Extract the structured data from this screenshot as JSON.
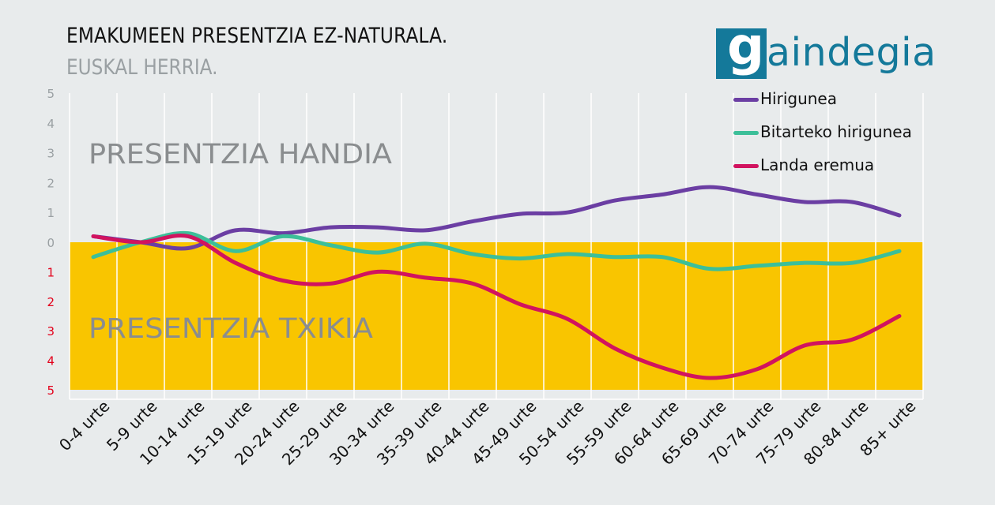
{
  "header": {
    "title": "EMAKUMEEN PRESENTZIA EZ-NATURALA.",
    "subtitle": "EUSKAL HERRIA."
  },
  "logo": {
    "text": "gaindegia",
    "color": "#14799a"
  },
  "chart_data": {
    "type": "line",
    "categories": [
      "0-4 urte",
      "5-9 urte",
      "10-14 urte",
      "15-19 urte",
      "20-24 urte",
      "25-29 urte",
      "30-34 urte",
      "35-39 urte",
      "40-44 urte",
      "45-49 urte",
      "50-54 urte",
      "55-59 urte",
      "60-64 urte",
      "65-69 urte",
      "70-74 urte",
      "75-79 urte",
      "80-84 urte",
      "85+ urte"
    ],
    "series": [
      {
        "name": "Hirigunea",
        "color": "#6b3ea3",
        "values": [
          0.2,
          0.0,
          -0.2,
          0.4,
          0.3,
          0.5,
          0.5,
          0.4,
          0.7,
          0.95,
          1.0,
          1.4,
          1.6,
          1.85,
          1.6,
          1.35,
          1.35,
          0.9
        ]
      },
      {
        "name": "Bitarteko hirigunea",
        "color": "#3cbf99",
        "values": [
          -0.5,
          0.0,
          0.3,
          -0.3,
          0.2,
          -0.1,
          -0.35,
          -0.05,
          -0.4,
          -0.55,
          -0.4,
          -0.5,
          -0.5,
          -0.9,
          -0.8,
          -0.7,
          -0.7,
          -0.3
        ]
      },
      {
        "name": "Landa eremua",
        "color": "#d1135f",
        "values": [
          0.2,
          0.0,
          0.2,
          -0.7,
          -1.3,
          -1.4,
          -1.0,
          -1.2,
          -1.4,
          -2.1,
          -2.6,
          -3.6,
          -4.25,
          -4.6,
          -4.3,
          -3.5,
          -3.3,
          -2.5
        ]
      }
    ],
    "yticks": [
      "5",
      "4",
      "3",
      "2",
      "1",
      "0",
      "1",
      "2",
      "3",
      "4",
      "5"
    ],
    "ylim": [
      -5,
      5
    ],
    "region_labels": {
      "upper": "PRESENTZIA HANDIA",
      "lower": "PRESENTZIA TXIKIA"
    },
    "colors": {
      "lower_band": "#f9c500",
      "upper_tick": "#9aa0a3",
      "lower_tick": "#e3001b",
      "grid": "#ffffff"
    },
    "legend_position": "top-right",
    "grid": true
  }
}
